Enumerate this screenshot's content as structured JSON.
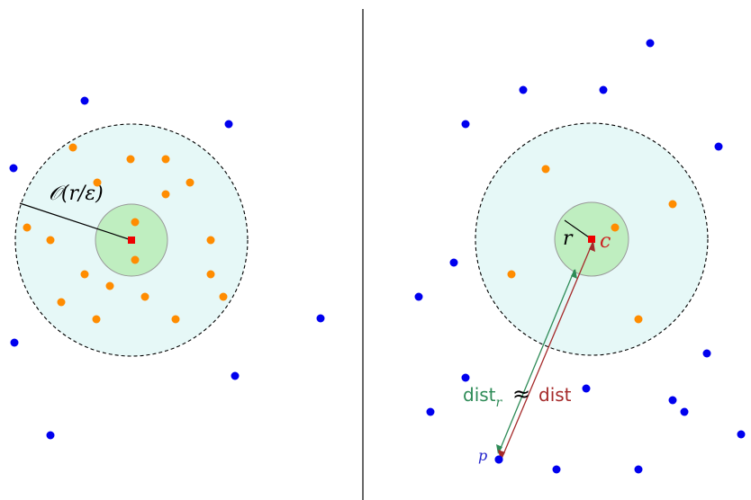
{
  "colors": {
    "background": "#ffffff",
    "divider": "#000000",
    "outer_disk_fill": "#e6f8f7",
    "outer_disk_stroke": "#000000",
    "inner_disk_fill": "#bfeec0",
    "inner_disk_stroke": "#999999",
    "blue_point": "#0000ee",
    "orange_point": "#ff8c00",
    "center_marker": "#ee0000",
    "green_arrow": "#2e8b57",
    "red_arrow": "#a52a2a",
    "label_c": "#cc2222",
    "label_p": "#2222cc"
  },
  "left_panel": {
    "radius_label": "𝒪(r/ε)"
  },
  "right_panel": {
    "radius_label": "r",
    "center_label": "c",
    "point_label": "p",
    "dist_r_label": "dist",
    "dist_r_subscript": "r",
    "approx_symbol": "≈",
    "dist_label": "dist"
  }
}
